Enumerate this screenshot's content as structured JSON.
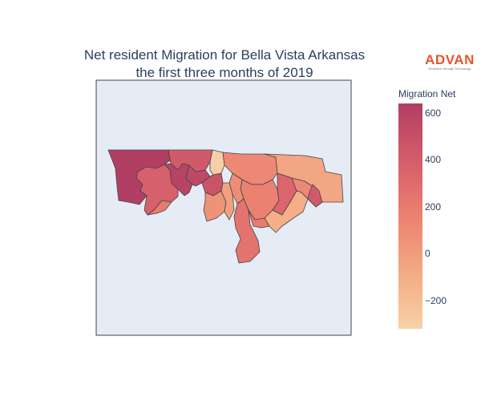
{
  "title": {
    "line1": "Net resident Migration for Bella Vista Arkansas",
    "line2": "the first three months of 2019"
  },
  "logo": {
    "name": "ADVAN",
    "tagline": "Research through Technology"
  },
  "colorbar": {
    "title": "Migration Net",
    "range": [
      -320,
      640
    ],
    "ticks": [
      {
        "value": 600,
        "label": "600"
      },
      {
        "value": 400,
        "label": "400"
      },
      {
        "value": 200,
        "label": "200"
      },
      {
        "value": 0,
        "label": "0"
      },
      {
        "value": -200,
        "label": "−200"
      }
    ],
    "colorscale": [
      "#f6d2a9",
      "#f5b78e",
      "#f19c7c",
      "#ea8171",
      "#dd686c",
      "#ca5268",
      "#b13f64"
    ]
  },
  "map": {
    "background": "#e5ecf6",
    "region_border": "#444444",
    "regions": [
      {
        "id": "nw-corner",
        "value": 640
      },
      {
        "id": "west-mid",
        "value": 380
      },
      {
        "id": "north-central-west",
        "value": 420
      },
      {
        "id": "central-west-strip",
        "value": 600
      },
      {
        "id": "central-small-a",
        "value": 560
      },
      {
        "id": "north-central",
        "value": -300
      },
      {
        "id": "north-center-east",
        "value": 120
      },
      {
        "id": "northeast",
        "value": -60
      },
      {
        "id": "central-blob",
        "value": 470
      },
      {
        "id": "center-column",
        "value": 160
      },
      {
        "id": "center-left-lower",
        "value": 60
      },
      {
        "id": "center-right",
        "value": 90
      },
      {
        "id": "south-column-left",
        "value": -30
      },
      {
        "id": "south-spike",
        "value": 250
      },
      {
        "id": "east-central",
        "value": 340
      },
      {
        "id": "east-outer",
        "value": 110
      },
      {
        "id": "southeast-bottom",
        "value": -110
      },
      {
        "id": "west-lower-small",
        "value": 200
      },
      {
        "id": "center-middle",
        "value": 190
      },
      {
        "id": "east-tail",
        "value": 420
      }
    ]
  }
}
